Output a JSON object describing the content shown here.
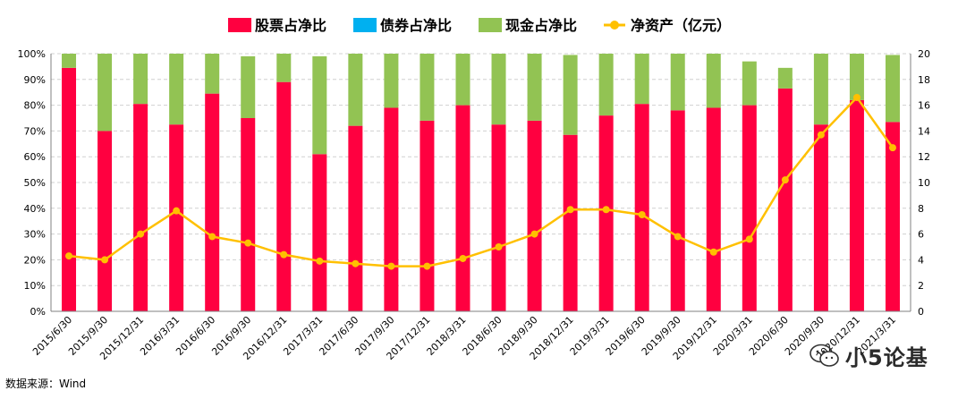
{
  "chart_data": {
    "type": "bar",
    "categories": [
      "2015/6/30",
      "2015/9/30",
      "2015/12/31",
      "2016/3/31",
      "2016/6/30",
      "2016/9/30",
      "2016/12/31",
      "2017/3/31",
      "2017/6/30",
      "2017/9/30",
      "2017/12/31",
      "2018/3/31",
      "2018/6/30",
      "2018/9/30",
      "2018/12/31",
      "2019/3/31",
      "2019/6/30",
      "2019/9/30",
      "2019/12/31",
      "2020/3/31",
      "2020/6/30",
      "2020/9/30",
      "2020/12/31",
      "2021/3/31"
    ],
    "series": [
      {
        "name": "股票占净比",
        "kind": "stacked-bar",
        "color": "#ff0040",
        "values": [
          94.5,
          70,
          80.5,
          72.5,
          84.5,
          75,
          89,
          61,
          72,
          79,
          74,
          80,
          72.5,
          74,
          68.5,
          76,
          80.5,
          78,
          79,
          80,
          86.5,
          72.5,
          82,
          73.5
        ]
      },
      {
        "name": "债券占净比",
        "kind": "stacked-bar",
        "color": "#00b0f0",
        "values": [
          0,
          0,
          0,
          0,
          0,
          0,
          0,
          0,
          0,
          0,
          0,
          0,
          0,
          0,
          0,
          0,
          0,
          0,
          0,
          0,
          0,
          0,
          0,
          0
        ]
      },
      {
        "name": "现金占净比",
        "kind": "stacked-bar",
        "color": "#92c353",
        "values": [
          5.5,
          30,
          19.5,
          27.5,
          15.5,
          24,
          11,
          38,
          28,
          21,
          26,
          20,
          27.5,
          26,
          31,
          24,
          19.5,
          22,
          21,
          17,
          8,
          27.5,
          18,
          26
        ]
      },
      {
        "name": "净资产（亿元）",
        "kind": "line",
        "axis": "right",
        "color": "#ffc000",
        "values": [
          4.3,
          4.0,
          6.0,
          7.8,
          5.8,
          5.3,
          4.4,
          3.9,
          3.7,
          3.5,
          3.5,
          4.1,
          5.0,
          6.0,
          7.9,
          7.9,
          7.5,
          5.8,
          4.6,
          5.6,
          10.2,
          13.7,
          16.6,
          12.7
        ]
      }
    ],
    "yaxis_left": {
      "ticks": [
        "0%",
        "10%",
        "20%",
        "30%",
        "40%",
        "50%",
        "60%",
        "70%",
        "80%",
        "90%",
        "100%"
      ],
      "ylim": [
        0,
        100
      ]
    },
    "yaxis_right": {
      "ticks": [
        "0",
        "2",
        "4",
        "6",
        "8",
        "10",
        "12",
        "14",
        "16",
        "18",
        "20"
      ],
      "ylim": [
        0,
        20
      ]
    },
    "grid": true,
    "legend_position": "top-center",
    "title": "",
    "xlabel": "",
    "ylabel": ""
  },
  "source_note": "数据来源：Wind",
  "watermark": {
    "text": "小5论基",
    "icon": "wechat-icon"
  }
}
